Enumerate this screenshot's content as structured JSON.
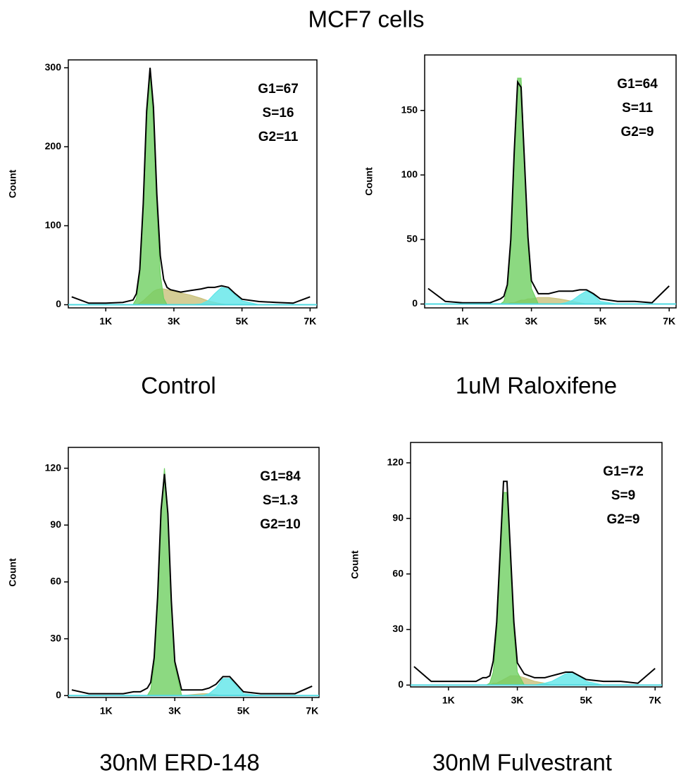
{
  "title": "MCF7 cells",
  "chart_data": [
    {
      "type": "area",
      "caption": "Control",
      "ylabel": "Count",
      "annotations": [
        "G1=67",
        "S=16",
        "G2=11"
      ],
      "xlim": [
        -100,
        7200
      ],
      "ylim": [
        -4,
        310
      ],
      "xticks": [
        {
          "value": 1000,
          "label": "1K"
        },
        {
          "value": 3000,
          "label": "3K"
        },
        {
          "value": 5000,
          "label": "5K"
        },
        {
          "value": 7000,
          "label": "7K"
        }
      ],
      "yticks": [
        0,
        100,
        200,
        300
      ],
      "x": [
        0,
        500,
        1000,
        1500,
        1800,
        1900,
        2000,
        2100,
        2200,
        2300,
        2400,
        2500,
        2600,
        2700,
        2800,
        2900,
        3000,
        3200,
        3500,
        3800,
        4000,
        4200,
        4400,
        4600,
        4800,
        5000,
        5500,
        6000,
        6500,
        7000
      ],
      "series": [
        {
          "color": "#c9c07a",
          "fill": true,
          "values": [
            0,
            0,
            0,
            0,
            0,
            0,
            2,
            5,
            9,
            13,
            17,
            19,
            20,
            20,
            19,
            18,
            17,
            15,
            12,
            8,
            5,
            3,
            1,
            0,
            0,
            0,
            0,
            0,
            0,
            0
          ]
        },
        {
          "color": "#5fe6e8",
          "fill": true,
          "values": [
            0,
            0,
            0,
            0,
            0,
            0,
            0,
            0,
            0,
            0,
            0,
            0,
            0,
            0,
            0,
            0,
            0,
            0,
            0,
            1,
            5,
            14,
            22,
            20,
            12,
            5,
            0,
            0,
            0,
            0
          ]
        },
        {
          "color": "#6fcf62",
          "fill": true,
          "values": [
            0,
            0,
            0,
            0,
            0,
            8,
            39,
            119,
            232,
            290,
            232,
            119,
            39,
            8,
            0,
            0,
            0,
            0,
            0,
            0,
            0,
            0,
            0,
            0,
            0,
            0,
            0,
            0,
            0,
            0
          ]
        },
        {
          "color": "#000000",
          "fill": false,
          "values": [
            10,
            2,
            2,
            3,
            6,
            14,
            45,
            128,
            245,
            300,
            250,
            140,
            62,
            32,
            22,
            19,
            18,
            16,
            18,
            20,
            22,
            22,
            24,
            22,
            14,
            7,
            4,
            3,
            2,
            10
          ]
        }
      ]
    },
    {
      "type": "area",
      "caption": "1uM Raloxifene",
      "ylabel": "Count",
      "annotations": [
        "G1=64",
        "S=11",
        "G2=9"
      ],
      "xlim": [
        -100,
        7200
      ],
      "ylim": [
        -3,
        193
      ],
      "xticks": [
        {
          "value": 1000,
          "label": "1K"
        },
        {
          "value": 3000,
          "label": "3K"
        },
        {
          "value": 5000,
          "label": "5K"
        },
        {
          "value": 7000,
          "label": "7K"
        }
      ],
      "yticks": [
        0,
        50,
        100,
        150
      ],
      "x": [
        0,
        500,
        1000,
        1500,
        1800,
        1900,
        2000,
        2100,
        2200,
        2300,
        2400,
        2500,
        2600,
        2700,
        2800,
        2900,
        3000,
        3200,
        3500,
        3800,
        4000,
        4200,
        4400,
        4600,
        4800,
        5000,
        5500,
        6000,
        6500,
        7000
      ],
      "series": [
        {
          "color": "#c9c07a",
          "fill": true,
          "values": [
            0,
            0,
            0,
            0,
            0,
            0,
            0,
            0,
            0,
            0,
            1,
            1,
            2,
            3,
            3,
            4,
            4,
            5,
            5,
            4,
            3,
            2,
            1,
            0,
            0,
            0,
            0,
            0,
            0,
            0
          ]
        },
        {
          "color": "#5fe6e8",
          "fill": true,
          "values": [
            0,
            0,
            0,
            0,
            0,
            0,
            0,
            0,
            0,
            0,
            0,
            0,
            0,
            0,
            0,
            0,
            0,
            0,
            0,
            0,
            1,
            3,
            7,
            10,
            7,
            2,
            0,
            0,
            0,
            0
          ]
        },
        {
          "color": "#6fcf62",
          "fill": true,
          "values": [
            0,
            0,
            0,
            0,
            0,
            0,
            0,
            0,
            2,
            12,
            46,
            112,
            175,
            175,
            112,
            46,
            12,
            0,
            0,
            0,
            0,
            0,
            0,
            0,
            0,
            0,
            0,
            0,
            0,
            0
          ]
        },
        {
          "color": "#000000",
          "fill": false,
          "values": [
            12,
            2,
            1,
            1,
            1,
            2,
            3,
            4,
            6,
            15,
            50,
            118,
            172,
            168,
            110,
            52,
            18,
            8,
            8,
            10,
            10,
            10,
            11,
            11,
            8,
            4,
            2,
            2,
            1,
            14
          ]
        }
      ]
    },
    {
      "type": "area",
      "caption": "30nM ERD-148",
      "ylabel": "Count",
      "annotations": [
        "G1=84",
        "S=1.3",
        "G2=10"
      ],
      "xlim": [
        -100,
        7200
      ],
      "ylim": [
        -1,
        131
      ],
      "xticks": [
        {
          "value": 1000,
          "label": "1K"
        },
        {
          "value": 3000,
          "label": "3K"
        },
        {
          "value": 5000,
          "label": "5K"
        },
        {
          "value": 7000,
          "label": "7K"
        }
      ],
      "yticks": [
        0,
        30,
        60,
        90,
        120
      ],
      "x": [
        0,
        500,
        1000,
        1500,
        1800,
        1900,
        2000,
        2100,
        2200,
        2300,
        2400,
        2500,
        2600,
        2700,
        2800,
        2900,
        3000,
        3200,
        3500,
        3800,
        4000,
        4200,
        4400,
        4600,
        4800,
        5000,
        5500,
        6000,
        6500,
        7000
      ],
      "series": [
        {
          "color": "#c9c07a",
          "fill": true,
          "values": [
            0,
            0,
            0,
            0,
            0,
            0,
            0,
            0,
            0,
            0,
            0,
            0,
            0,
            0,
            0,
            0,
            0,
            0,
            0.5,
            1,
            1,
            0.5,
            0,
            0,
            0,
            0,
            0,
            0,
            0,
            0
          ]
        },
        {
          "color": "#5fe6e8",
          "fill": true,
          "values": [
            0,
            0,
            0,
            0,
            0,
            0,
            0,
            0,
            0,
            0,
            0,
            0,
            0,
            0,
            0,
            0,
            0,
            0,
            0,
            0,
            1,
            4,
            9,
            9,
            5,
            1,
            0,
            0,
            0,
            0
          ]
        },
        {
          "color": "#6fcf62",
          "fill": true,
          "values": [
            0,
            0,
            0,
            0,
            0,
            0,
            0,
            0,
            0,
            3,
            16,
            49,
            96,
            120,
            96,
            49,
            16,
            0,
            0,
            0,
            0,
            0,
            0,
            0,
            0,
            0,
            0,
            0,
            0,
            0
          ]
        },
        {
          "color": "#000000",
          "fill": false,
          "values": [
            3,
            1,
            1,
            1,
            2,
            2,
            2,
            3,
            4,
            7,
            20,
            52,
            98,
            117,
            96,
            50,
            18,
            3,
            3,
            3,
            4,
            6,
            10,
            10,
            6,
            2,
            1,
            1,
            1,
            5
          ]
        }
      ]
    },
    {
      "type": "area",
      "caption": "30nM Fulvestrant",
      "ylabel": "Count",
      "annotations": [
        "G1=72",
        "S=9",
        "G2=9"
      ],
      "xlim": [
        -100,
        7200
      ],
      "ylim": [
        -1,
        131
      ],
      "xticks": [
        {
          "value": 1000,
          "label": "1K"
        },
        {
          "value": 3000,
          "label": "3K"
        },
        {
          "value": 5000,
          "label": "5K"
        },
        {
          "value": 7000,
          "label": "7K"
        }
      ],
      "yticks": [
        0,
        30,
        60,
        90,
        120
      ],
      "x": [
        0,
        500,
        1000,
        1500,
        1800,
        1900,
        2000,
        2100,
        2200,
        2300,
        2400,
        2500,
        2600,
        2700,
        2800,
        2900,
        3000,
        3200,
        3500,
        3800,
        4000,
        4200,
        4400,
        4600,
        4800,
        5000,
        5500,
        6000,
        6500,
        7000
      ],
      "series": [
        {
          "color": "#c9c07a",
          "fill": true,
          "values": [
            0,
            0,
            0,
            0,
            0,
            0,
            0,
            0,
            0,
            1,
            1,
            2,
            3,
            4,
            5,
            5,
            5,
            4,
            2,
            1,
            0,
            0,
            0,
            0,
            0,
            0,
            0,
            0,
            0,
            0
          ]
        },
        {
          "color": "#5fe6e8",
          "fill": true,
          "values": [
            0,
            0,
            0,
            0,
            0,
            0,
            0,
            0,
            0,
            0,
            0,
            0,
            0,
            0,
            0,
            0,
            0,
            0,
            0,
            1,
            2,
            4,
            6,
            7,
            5,
            2,
            0,
            0,
            0,
            0
          ]
        },
        {
          "color": "#6fcf62",
          "fill": true,
          "values": [
            0,
            0,
            0,
            0,
            0,
            0,
            0,
            0,
            1,
            7,
            28,
            67,
            104,
            104,
            67,
            28,
            7,
            0,
            0,
            0,
            0,
            0,
            0,
            0,
            0,
            0,
            0,
            0,
            0,
            0
          ]
        },
        {
          "color": "#000000",
          "fill": false,
          "values": [
            10,
            2,
            2,
            2,
            2,
            3,
            4,
            4,
            5,
            13,
            34,
            72,
            110,
            110,
            72,
            34,
            12,
            6,
            4,
            4,
            5,
            6,
            7,
            7,
            5,
            3,
            2,
            2,
            1,
            9
          ]
        }
      ]
    }
  ]
}
